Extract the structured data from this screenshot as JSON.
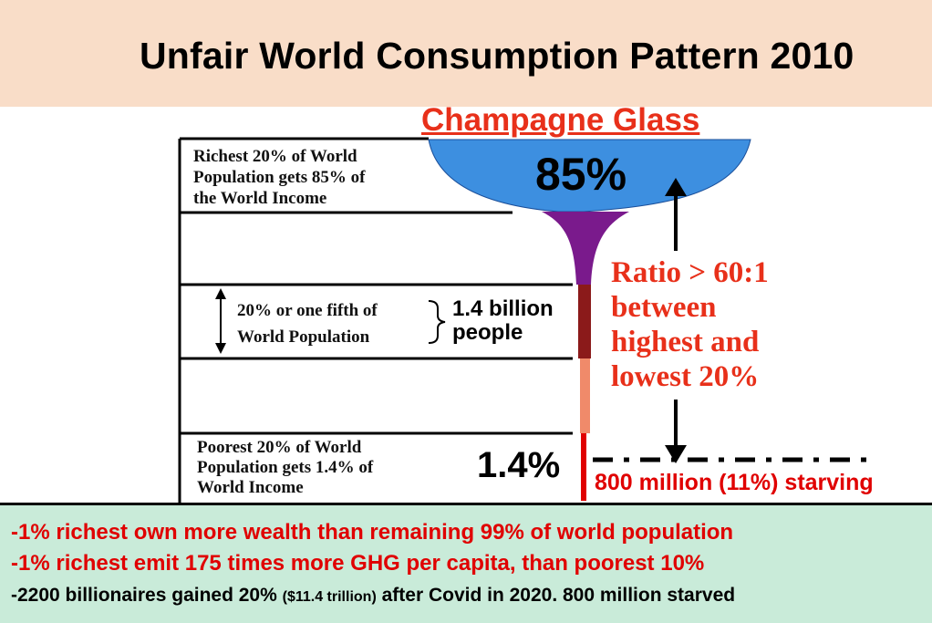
{
  "title": "Unfair World Consumption Pattern 2010",
  "glass_title": "Champagne Glass",
  "top_percent": "85%",
  "bottom_percent": "1.4%",
  "richest_text": [
    "Richest 20% of  World",
    "Population gets 85% of",
    "the World Income"
  ],
  "fifth_text": [
    "20% or one fifth of",
    "World Population"
  ],
  "billion_text": [
    "1.4 billion",
    "people"
  ],
  "poorest_text": [
    "Poorest 20% of  World",
    "Population gets 1.4% of",
    "World Income"
  ],
  "ratio_text": [
    "Ratio > 60:1",
    "between",
    "highest and",
    "lowest 20%"
  ],
  "starving_text": "800 million (11%) starving",
  "footer": {
    "line1": "-1% richest own more wealth than remaining 99% of world population",
    "line2": "-1% richest emit 175 times more GHG per capita, than poorest 10%",
    "line3_a": "-2200 billionaires gained 20% ",
    "line3_b": "($11.4 trillion)",
    "line3_c": " after Covid in 2020. 800 million starved"
  },
  "colors": {
    "header_bg": "#f9ddc8",
    "footer_bg": "#c9ebd9",
    "accent_red": "#e8301a",
    "bowl_blue": "#3d8fe0",
    "stem_purple": "#7a1a8c",
    "stem_brown": "#8b1a1a",
    "stem_salmon": "#f08a6a",
    "stem_red": "#e00000"
  }
}
